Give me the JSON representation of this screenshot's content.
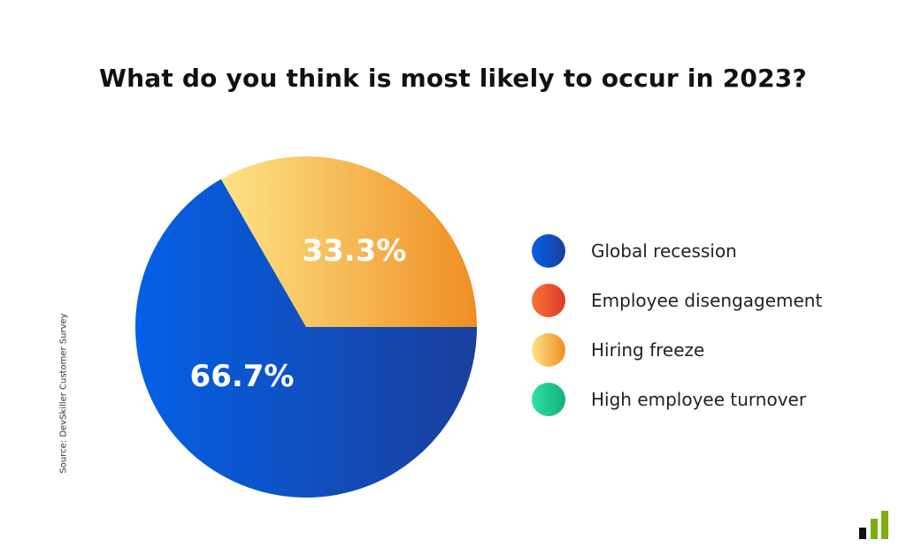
{
  "chart_data": {
    "type": "pie",
    "title": "What do you think is most likely to occur in 2023?",
    "slices": [
      {
        "name": "Global recession",
        "value": 66.7,
        "label": "66.7%",
        "colors": [
          "#0460e6",
          "#1a3f9c"
        ]
      },
      {
        "name": "Employee disengagement",
        "value": 0,
        "label": "",
        "colors": [
          "#f7733a",
          "#de3a24"
        ]
      },
      {
        "name": "Hiring freeze",
        "value": 33.3,
        "label": "33.3%",
        "colors": [
          "#fde387",
          "#ef8e22"
        ]
      },
      {
        "name": "High employee turnover",
        "value": 0,
        "label": "",
        "colors": [
          "#2fe0a8",
          "#14b07c"
        ]
      }
    ],
    "legend_position": "right"
  },
  "source": "Source: DevSkiller Customer Survey",
  "logo": {
    "colors": [
      "#111111",
      "#7aae10",
      "#7aae10"
    ]
  }
}
